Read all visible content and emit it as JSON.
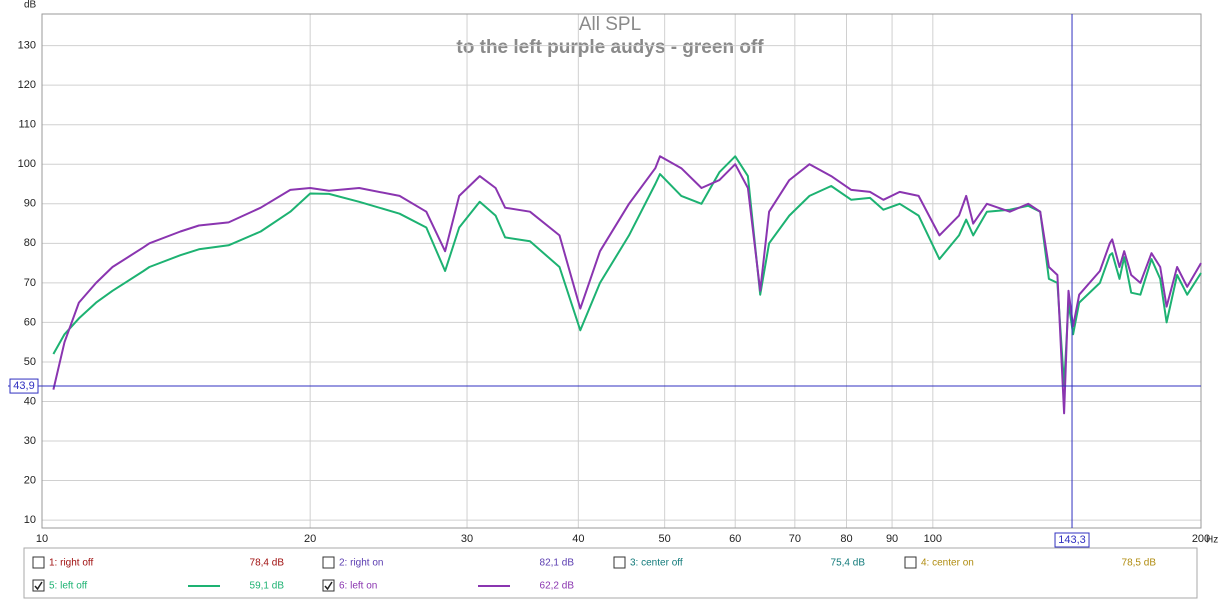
{
  "chart_data": {
    "type": "line",
    "title": "All SPL",
    "subtitle": "to the left purple audys - green off",
    "y_label": "dB",
    "x_label": "Hz",
    "x_scale": "log",
    "grid": true,
    "xlim": [
      10,
      200
    ],
    "ylim": [
      8,
      138
    ],
    "xticks": [
      10,
      20,
      30,
      40,
      50,
      60,
      70,
      80,
      90,
      100,
      200
    ],
    "yticks": [
      10,
      20,
      30,
      40,
      50,
      60,
      70,
      80,
      90,
      100,
      110,
      120,
      130
    ],
    "x": [
      10.3,
      10.6,
      11,
      11.5,
      12,
      13,
      13.2,
      14.3,
      15,
      16.2,
      17.6,
      19,
      20,
      21,
      22.7,
      25.2,
      27,
      28.35,
      29.4,
      31,
      32.3,
      33.1,
      35.3,
      38.1,
      40.2,
      42.3,
      45.6,
      48.8,
      49.4,
      52.2,
      55,
      57.6,
      60,
      62,
      64,
      65.5,
      69,
      72.7,
      76.9,
      81,
      85,
      88,
      91.8,
      96.4,
      101.7,
      107,
      109,
      111,
      115,
      122,
      128,
      132,
      135,
      138,
      140.4,
      142,
      143.7,
      146,
      154,
      158,
      159,
      162,
      164,
      167,
      171,
      176,
      180,
      183,
      188,
      193,
      200
    ],
    "series": [
      {
        "name": "1: right off",
        "color": "#a01010",
        "readout": "78,4 dB",
        "checked": false
      },
      {
        "name": "2: right on",
        "color": "#5a3cb0",
        "readout": "82,1 dB",
        "checked": false
      },
      {
        "name": "3: center off",
        "color": "#117a7a",
        "readout": "75,4 dB",
        "checked": false
      },
      {
        "name": "4: center on",
        "color": "#b08c10",
        "readout": "78,5 dB",
        "checked": false
      },
      {
        "name": "5: left off",
        "color": "#1db272",
        "readout": "59,1 dB",
        "checked": true,
        "values": [
          52,
          57,
          61,
          65,
          68,
          73,
          74,
          77,
          78.5,
          79.5,
          83,
          88,
          92.6,
          92.5,
          90.5,
          87.5,
          84,
          73,
          84,
          90.5,
          87,
          81.5,
          80.5,
          74,
          58,
          70,
          82,
          95,
          97.5,
          92,
          90,
          98,
          102,
          97,
          67,
          80,
          87,
          92,
          94.5,
          91,
          91.5,
          88.5,
          90,
          87,
          76,
          82,
          86,
          82,
          88,
          88.5,
          89.5,
          88,
          71,
          70,
          44,
          65,
          57,
          65,
          70,
          77,
          77.5,
          71,
          76.5,
          67.5,
          67,
          76,
          71,
          60,
          72,
          67,
          72.5
        ]
      },
      {
        "name": "6: left on",
        "color": "#8a35b0",
        "readout": "62,2 dB",
        "checked": true,
        "values": [
          43,
          55,
          65,
          70,
          74,
          79,
          80,
          83,
          84.5,
          85.3,
          89,
          93.5,
          94,
          93.3,
          94,
          92,
          88,
          78,
          92,
          97,
          94,
          89,
          88,
          82,
          63.5,
          78,
          90,
          99,
          102,
          99,
          94,
          96,
          100,
          94,
          68,
          88,
          96,
          100,
          97,
          93.5,
          93,
          91,
          93,
          92,
          82,
          87,
          92,
          85,
          90,
          88,
          90,
          88,
          74,
          72,
          37,
          68,
          59,
          67,
          73,
          80,
          81,
          74,
          78,
          72,
          70,
          77.5,
          74,
          64,
          74,
          69,
          75
        ]
      }
    ],
    "cursor": {
      "x": {
        "value": 143.3,
        "label": "143,3"
      },
      "y": {
        "value": 43.9,
        "label": "43,9"
      }
    }
  }
}
